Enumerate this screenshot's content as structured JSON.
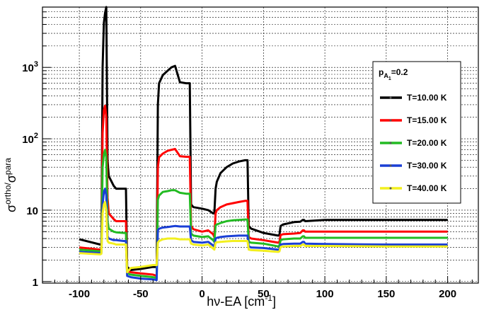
{
  "chart_data": {
    "type": "line",
    "title": "",
    "xlabel": "hν-EA [cm",
    "xlabel_sup": "-1",
    "xlabel_close": "]",
    "ylabel_sigma": "σ",
    "ylabel_sup_ortho": "ortho/",
    "ylabel_mid": "σ",
    "ylabel_sup_para": "para",
    "xlim": [
      -130,
      225
    ],
    "ylim": [
      0.95,
      7000
    ],
    "yscale": "log",
    "grid": true,
    "x_ticks": [
      -100,
      -50,
      0,
      50,
      100,
      150,
      200
    ],
    "x_tick_labels": [
      "-100",
      "-50",
      "0",
      "50",
      "100",
      "150",
      "200"
    ],
    "y_ticks": [
      1,
      10,
      100,
      1000
    ],
    "y_tick_labels": [
      {
        "base": "1",
        "exp": ""
      },
      {
        "base": "10",
        "exp": ""
      },
      {
        "base": "10",
        "exp": "2"
      },
      {
        "base": "10",
        "exp": "3"
      }
    ],
    "legend": {
      "placement": "right",
      "header_main": "p",
      "header_sub": "A",
      "header_subsub": "1",
      "header_value": "=0.2",
      "entries": [
        "T=10.00 K",
        "T=15.00 K",
        "T=20.00 K",
        "T=30.00 K",
        "T=40.00 K"
      ]
    },
    "series": [
      {
        "name": "T=10.00 K",
        "color": "#000000",
        "points": [
          [
            -100,
            3.9
          ],
          [
            -83,
            3.3
          ],
          [
            -82,
            3.4
          ],
          [
            -81,
            1000
          ],
          [
            -80,
            4200
          ],
          [
            -79,
            5800
          ],
          [
            -78,
            7000
          ],
          [
            -77,
            50
          ],
          [
            -76,
            30
          ],
          [
            -72,
            22
          ],
          [
            -70,
            20
          ],
          [
            -64,
            20
          ],
          [
            -62,
            20
          ],
          [
            -61,
            1.6
          ],
          [
            -58,
            1.45
          ],
          [
            -50,
            1.5
          ],
          [
            -40,
            1.6
          ],
          [
            -37,
            1.6
          ],
          [
            -36,
            300
          ],
          [
            -35,
            600
          ],
          [
            -32,
            780
          ],
          [
            -28,
            900
          ],
          [
            -25,
            1000
          ],
          [
            -22,
            1050
          ],
          [
            -18,
            620
          ],
          [
            -13,
            600
          ],
          [
            -10,
            600
          ],
          [
            -9,
            12
          ],
          [
            -7,
            11
          ],
          [
            0,
            10.5
          ],
          [
            5,
            10
          ],
          [
            9,
            9
          ],
          [
            10,
            9
          ],
          [
            11,
            20
          ],
          [
            12,
            25
          ],
          [
            15,
            33
          ],
          [
            20,
            40
          ],
          [
            25,
            45
          ],
          [
            30,
            48
          ],
          [
            35,
            50
          ],
          [
            37,
            50
          ],
          [
            38,
            6
          ],
          [
            40,
            5.5
          ],
          [
            50,
            4.8
          ],
          [
            62,
            4.4
          ],
          [
            63,
            4.5
          ],
          [
            64,
            6
          ],
          [
            66,
            6.3
          ],
          [
            75,
            6.8
          ],
          [
            80,
            6.9
          ],
          [
            82,
            7.3
          ],
          [
            83,
            7.3
          ],
          [
            84,
            7
          ],
          [
            100,
            7.3
          ],
          [
            150,
            7.3
          ],
          [
            200,
            7.3
          ]
        ]
      },
      {
        "name": "T=15.00 K",
        "color": "#ff0000",
        "points": [
          [
            -100,
            3.0
          ],
          [
            -83,
            2.8
          ],
          [
            -82,
            2.9
          ],
          [
            -81,
            120
          ],
          [
            -80,
            250
          ],
          [
            -79,
            290
          ],
          [
            -78,
            200
          ],
          [
            -77,
            15
          ],
          [
            -76,
            9
          ],
          [
            -72,
            7.5
          ],
          [
            -70,
            7
          ],
          [
            -64,
            7
          ],
          [
            -62,
            7
          ],
          [
            -61,
            1.4
          ],
          [
            -58,
            1.35
          ],
          [
            -50,
            1.3
          ],
          [
            -40,
            1.25
          ],
          [
            -37,
            1.2
          ],
          [
            -36,
            40
          ],
          [
            -35,
            55
          ],
          [
            -32,
            62
          ],
          [
            -28,
            68
          ],
          [
            -25,
            70
          ],
          [
            -22,
            72
          ],
          [
            -18,
            57
          ],
          [
            -13,
            56
          ],
          [
            -10,
            56
          ],
          [
            -9,
            6
          ],
          [
            -7,
            5.4
          ],
          [
            0,
            5
          ],
          [
            5,
            5.2
          ],
          [
            9,
            4.6
          ],
          [
            10,
            4.2
          ],
          [
            11,
            9
          ],
          [
            12,
            10
          ],
          [
            15,
            11
          ],
          [
            20,
            12
          ],
          [
            25,
            12.5
          ],
          [
            30,
            13
          ],
          [
            35,
            13.5
          ],
          [
            37,
            13.5
          ],
          [
            38,
            4.2
          ],
          [
            40,
            4
          ],
          [
            50,
            3.8
          ],
          [
            62,
            3.5
          ],
          [
            63,
            3.6
          ],
          [
            64,
            4.5
          ],
          [
            66,
            4.6
          ],
          [
            75,
            4.7
          ],
          [
            80,
            4.8
          ],
          [
            82,
            5.2
          ],
          [
            83,
            5.2
          ],
          [
            84,
            5
          ],
          [
            100,
            5
          ],
          [
            150,
            5
          ],
          [
            200,
            5
          ]
        ]
      },
      {
        "name": "T=20.00 K",
        "color": "#22bb22",
        "points": [
          [
            -100,
            2.8
          ],
          [
            -83,
            2.65
          ],
          [
            -82,
            2.7
          ],
          [
            -81,
            40
          ],
          [
            -80,
            60
          ],
          [
            -79,
            70
          ],
          [
            -78,
            55
          ],
          [
            -77,
            7
          ],
          [
            -76,
            5.5
          ],
          [
            -72,
            5
          ],
          [
            -70,
            4.9
          ],
          [
            -64,
            4.8
          ],
          [
            -62,
            4.8
          ],
          [
            -61,
            1.3
          ],
          [
            -58,
            1.25
          ],
          [
            -50,
            1.2
          ],
          [
            -40,
            1.15
          ],
          [
            -37,
            1.12
          ],
          [
            -36,
            14
          ],
          [
            -35,
            16
          ],
          [
            -32,
            18
          ],
          [
            -28,
            18.5
          ],
          [
            -25,
            19
          ],
          [
            -22,
            19
          ],
          [
            -18,
            17.5
          ],
          [
            -13,
            17
          ],
          [
            -10,
            17
          ],
          [
            -9,
            4.7
          ],
          [
            -7,
            4.4
          ],
          [
            0,
            4.2
          ],
          [
            5,
            4.3
          ],
          [
            9,
            3.8
          ],
          [
            10,
            3.6
          ],
          [
            11,
            6.1
          ],
          [
            12,
            6.3
          ],
          [
            15,
            6.6
          ],
          [
            20,
            7
          ],
          [
            25,
            7.2
          ],
          [
            30,
            7.3
          ],
          [
            35,
            7.4
          ],
          [
            37,
            7.4
          ],
          [
            38,
            3.6
          ],
          [
            40,
            3.5
          ],
          [
            50,
            3.4
          ],
          [
            62,
            3.1
          ],
          [
            63,
            3.2
          ],
          [
            64,
            3.8
          ],
          [
            66,
            3.9
          ],
          [
            75,
            4
          ],
          [
            80,
            4
          ],
          [
            82,
            4.3
          ],
          [
            83,
            4.3
          ],
          [
            84,
            4.1
          ],
          [
            100,
            4.1
          ],
          [
            150,
            4.1
          ],
          [
            200,
            4.1
          ]
        ]
      },
      {
        "name": "T=30.00 K",
        "color": "#1a3fd6",
        "points": [
          [
            -100,
            2.6
          ],
          [
            -83,
            2.5
          ],
          [
            -82,
            2.55
          ],
          [
            -81,
            12
          ],
          [
            -80,
            18
          ],
          [
            -79,
            20
          ],
          [
            -78,
            16
          ],
          [
            -77,
            4.3
          ],
          [
            -76,
            4
          ],
          [
            -72,
            3.8
          ],
          [
            -70,
            3.8
          ],
          [
            -64,
            3.7
          ],
          [
            -62,
            3.7
          ],
          [
            -61,
            1.2
          ],
          [
            -58,
            1.15
          ],
          [
            -50,
            1.1
          ],
          [
            -40,
            1.07
          ],
          [
            -37,
            1.05
          ],
          [
            -36,
            5.2
          ],
          [
            -35,
            5.5
          ],
          [
            -32,
            5.7
          ],
          [
            -28,
            5.8
          ],
          [
            -25,
            5.9
          ],
          [
            -22,
            6
          ],
          [
            -18,
            5.9
          ],
          [
            -13,
            5.9
          ],
          [
            -10,
            5.9
          ],
          [
            -9,
            3.8
          ],
          [
            -7,
            3.6
          ],
          [
            0,
            3.5
          ],
          [
            5,
            3.6
          ],
          [
            9,
            3.2
          ],
          [
            10,
            3.1
          ],
          [
            11,
            4
          ],
          [
            12,
            4.1
          ],
          [
            15,
            4.2
          ],
          [
            20,
            4.3
          ],
          [
            25,
            4.35
          ],
          [
            30,
            4.4
          ],
          [
            35,
            4.4
          ],
          [
            37,
            4.4
          ],
          [
            38,
            3.1
          ],
          [
            40,
            3
          ],
          [
            50,
            2.95
          ],
          [
            62,
            2.8
          ],
          [
            63,
            2.85
          ],
          [
            64,
            3.3
          ],
          [
            66,
            3.35
          ],
          [
            75,
            3.4
          ],
          [
            80,
            3.4
          ],
          [
            82,
            3.6
          ],
          [
            83,
            3.6
          ],
          [
            84,
            3.4
          ],
          [
            100,
            3.35
          ],
          [
            150,
            3.3
          ],
          [
            200,
            3.3
          ]
        ]
      },
      {
        "name": "T=40.00 K",
        "color": "#f2ef1f",
        "points": [
          [
            -100,
            2.5
          ],
          [
            -83,
            2.4
          ],
          [
            -82,
            2.45
          ],
          [
            -81,
            9
          ],
          [
            -80,
            12
          ],
          [
            -79,
            13
          ],
          [
            -78,
            10
          ],
          [
            -77,
            3.7
          ],
          [
            -76,
            3.5
          ],
          [
            -72,
            3.4
          ],
          [
            -70,
            3.3
          ],
          [
            -64,
            3.3
          ],
          [
            -62,
            3.3
          ],
          [
            -61,
            1.35
          ],
          [
            -58,
            1.55
          ],
          [
            -50,
            1.6
          ],
          [
            -40,
            1.7
          ],
          [
            -37,
            1.7
          ],
          [
            -36,
            3.5
          ],
          [
            -35,
            3.7
          ],
          [
            -32,
            3.9
          ],
          [
            -28,
            4
          ],
          [
            -25,
            4
          ],
          [
            -22,
            4
          ],
          [
            -18,
            3.9
          ],
          [
            -13,
            3.9
          ],
          [
            -10,
            3.9
          ],
          [
            -9,
            3.4
          ],
          [
            -7,
            3.3
          ],
          [
            0,
            3.2
          ],
          [
            5,
            3.3
          ],
          [
            9,
            2.9
          ],
          [
            10,
            2.8
          ],
          [
            11,
            3.5
          ],
          [
            12,
            3.55
          ],
          [
            15,
            3.6
          ],
          [
            20,
            3.65
          ],
          [
            25,
            3.7
          ],
          [
            30,
            3.7
          ],
          [
            35,
            3.7
          ],
          [
            37,
            3.7
          ],
          [
            38,
            2.8
          ],
          [
            40,
            2.75
          ],
          [
            50,
            2.7
          ],
          [
            62,
            2.6
          ],
          [
            63,
            2.65
          ],
          [
            64,
            3.05
          ],
          [
            66,
            3.1
          ],
          [
            75,
            3.15
          ],
          [
            80,
            3.15
          ],
          [
            82,
            3.3
          ],
          [
            83,
            3.3
          ],
          [
            84,
            3.15
          ],
          [
            100,
            3.15
          ],
          [
            150,
            3.1
          ],
          [
            200,
            3.1
          ]
        ]
      }
    ]
  }
}
